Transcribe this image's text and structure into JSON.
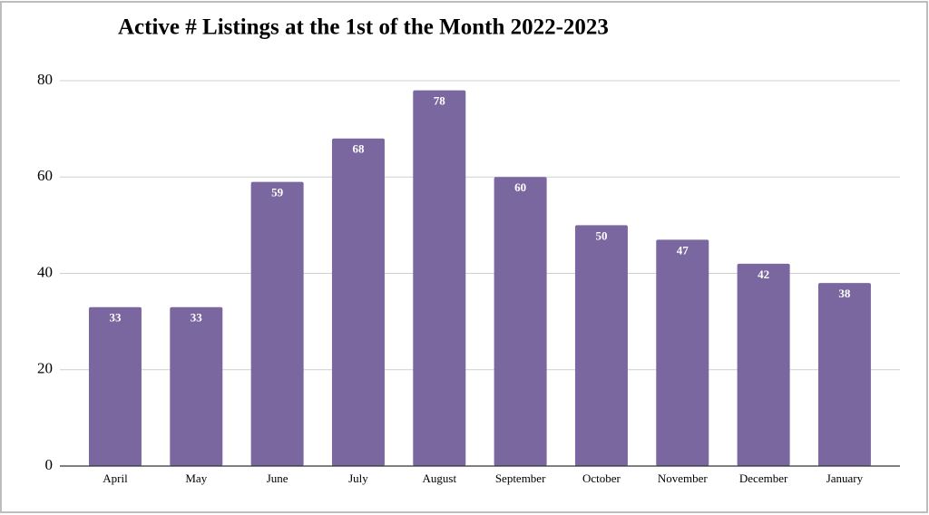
{
  "chart_data": {
    "type": "bar",
    "title": "Active # Listings at the 1st of the Month 2022-2023",
    "categories": [
      "April",
      "May",
      "June",
      "July",
      "August",
      "September",
      "October",
      "November",
      "December",
      "January"
    ],
    "values": [
      33,
      33,
      59,
      68,
      78,
      60,
      50,
      47,
      42,
      38
    ],
    "color": "#7b67a0",
    "ylim": [
      0,
      80
    ],
    "yticks": [
      0,
      20,
      40,
      60,
      80
    ],
    "grid": true,
    "data_labels": true
  }
}
